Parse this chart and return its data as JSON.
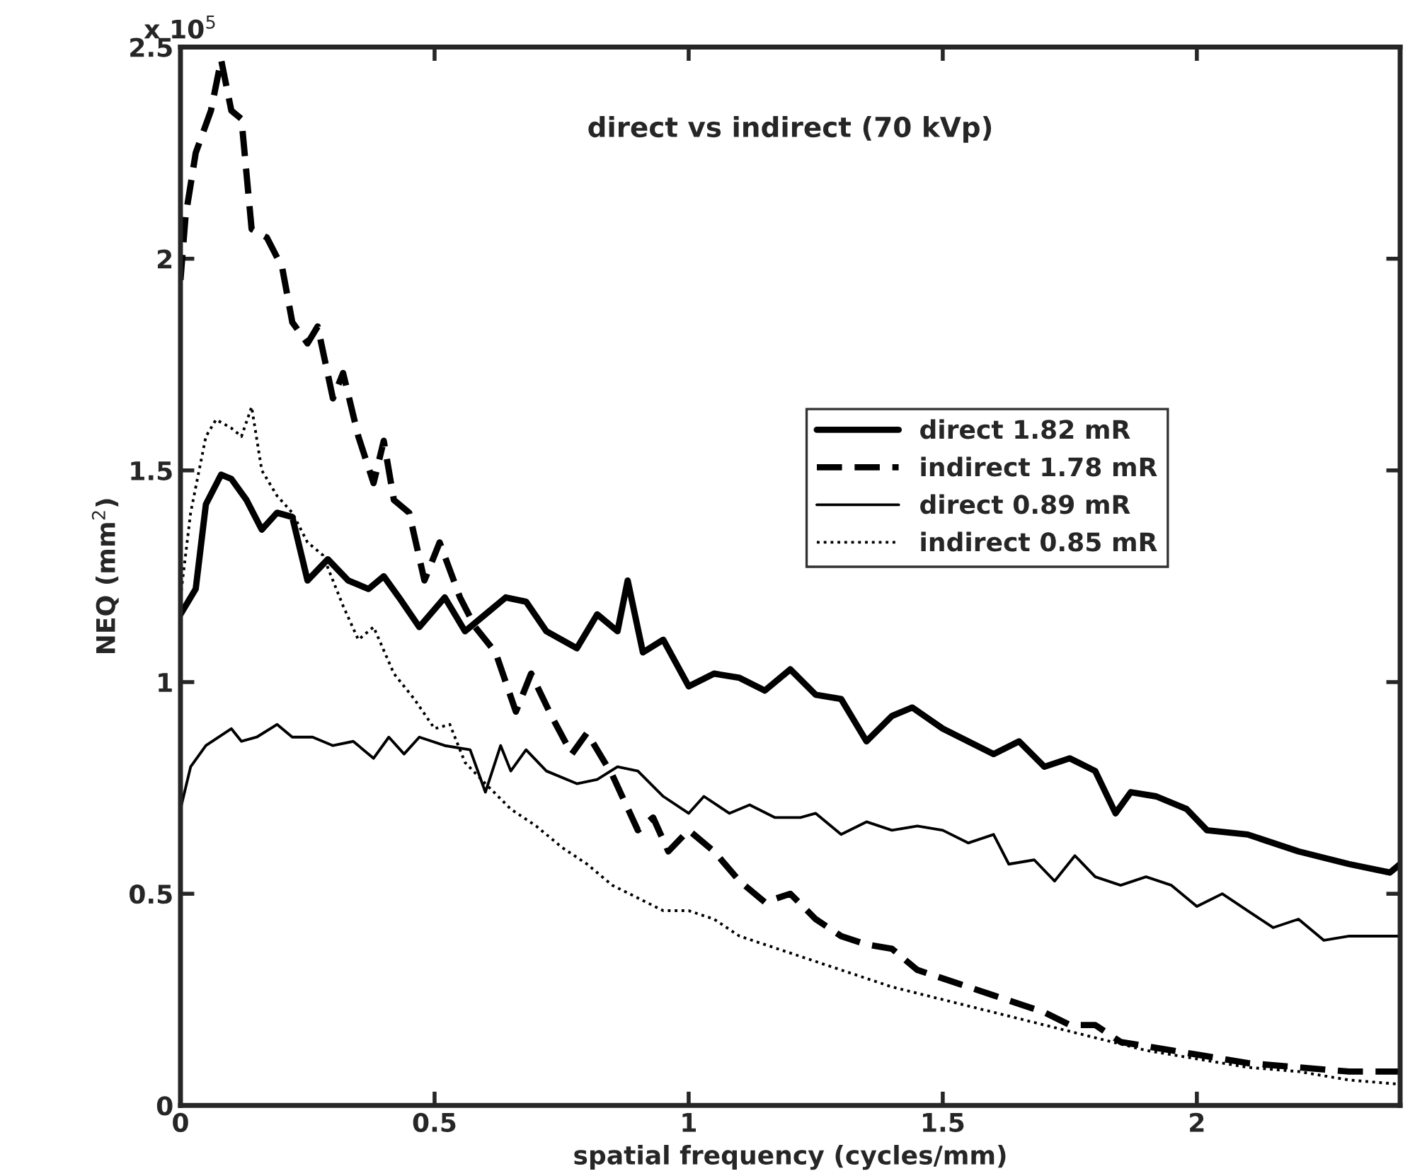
{
  "chart_data": {
    "type": "line",
    "title": "direct vs indirect (70 kVp)",
    "xlabel": "spatial frequency (cycles/mm)",
    "ylabel": "NEQ (mm$^{2}$)",
    "annotations": [
      "x 10$^{5}$"
    ],
    "xlim": [
      0,
      2.4
    ],
    "xticks": [
      0,
      0.5,
      1,
      1.5,
      2
    ],
    "ylim": [
      0,
      2.5
    ],
    "yticks": [
      0,
      0.5,
      1,
      1.5,
      2,
      2.5
    ],
    "grid": false,
    "legend": "right",
    "marker": "none",
    "series": [
      {
        "name": "direct 1.82 mR",
        "color": "#000000",
        "line_style": "solid",
        "x": [
          0,
          0.03,
          0.05,
          0.08,
          0.1,
          0.13,
          0.16,
          0.19,
          0.22,
          0.25,
          0.29,
          0.33,
          0.37,
          0.4,
          0.43,
          0.47,
          0.52,
          0.56,
          0.6,
          0.64,
          0.68,
          0.72,
          0.78,
          0.82,
          0.86,
          0.88,
          0.91,
          0.95,
          1.0,
          1.05,
          1.1,
          1.15,
          1.2,
          1.25,
          1.3,
          1.35,
          1.4,
          1.44,
          1.5,
          1.55,
          1.6,
          1.65,
          1.7,
          1.75,
          1.8,
          1.84,
          1.87,
          1.92,
          1.98,
          2.02,
          2.1,
          2.2,
          2.3,
          2.38,
          2.4
        ],
        "values": [
          1.16,
          1.22,
          1.42,
          1.49,
          1.48,
          1.43,
          1.36,
          1.4,
          1.39,
          1.24,
          1.29,
          1.24,
          1.22,
          1.25,
          1.2,
          1.13,
          1.2,
          1.12,
          1.16,
          1.2,
          1.19,
          1.12,
          1.08,
          1.16,
          1.12,
          1.24,
          1.07,
          1.1,
          0.99,
          1.02,
          1.01,
          0.98,
          1.03,
          0.97,
          0.96,
          0.86,
          0.92,
          0.94,
          0.89,
          0.86,
          0.83,
          0.86,
          0.8,
          0.82,
          0.79,
          0.69,
          0.74,
          0.73,
          0.7,
          0.65,
          0.64,
          0.6,
          0.57,
          0.55,
          0.57
        ]
      },
      {
        "name": "indirect 1.78 mR",
        "color": "#000000",
        "line_style": "dashed",
        "x": [
          0,
          0.01,
          0.03,
          0.06,
          0.08,
          0.1,
          0.12,
          0.14,
          0.17,
          0.2,
          0.22,
          0.25,
          0.27,
          0.3,
          0.32,
          0.35,
          0.38,
          0.4,
          0.42,
          0.45,
          0.48,
          0.51,
          0.55,
          0.58,
          0.62,
          0.66,
          0.69,
          0.73,
          0.77,
          0.8,
          0.85,
          0.9,
          0.93,
          0.96,
          1.0,
          1.05,
          1.1,
          1.15,
          1.2,
          1.25,
          1.3,
          1.35,
          1.4,
          1.45,
          1.5,
          1.55,
          1.6,
          1.65,
          1.7,
          1.75,
          1.8,
          1.85,
          1.9,
          2.0,
          2.1,
          2.2,
          2.3,
          2.4
        ],
        "values": [
          1.95,
          2.1,
          2.25,
          2.35,
          2.47,
          2.35,
          2.33,
          2.07,
          2.05,
          1.98,
          1.85,
          1.8,
          1.84,
          1.67,
          1.73,
          1.58,
          1.47,
          1.57,
          1.43,
          1.4,
          1.24,
          1.33,
          1.2,
          1.13,
          1.07,
          0.93,
          1.02,
          0.92,
          0.83,
          0.88,
          0.78,
          0.65,
          0.68,
          0.6,
          0.65,
          0.6,
          0.53,
          0.48,
          0.5,
          0.44,
          0.4,
          0.38,
          0.37,
          0.32,
          0.3,
          0.28,
          0.26,
          0.24,
          0.22,
          0.19,
          0.19,
          0.15,
          0.14,
          0.12,
          0.1,
          0.09,
          0.08,
          0.08
        ]
      },
      {
        "name": "direct 0.89 mR",
        "color": "#000000",
        "line_style": "solid",
        "x": [
          0,
          0.02,
          0.05,
          0.1,
          0.12,
          0.15,
          0.19,
          0.22,
          0.26,
          0.3,
          0.34,
          0.38,
          0.41,
          0.44,
          0.47,
          0.52,
          0.57,
          0.6,
          0.63,
          0.65,
          0.68,
          0.72,
          0.78,
          0.82,
          0.86,
          0.9,
          0.95,
          1.0,
          1.03,
          1.08,
          1.12,
          1.17,
          1.22,
          1.25,
          1.3,
          1.35,
          1.4,
          1.45,
          1.5,
          1.55,
          1.6,
          1.63,
          1.68,
          1.72,
          1.76,
          1.8,
          1.85,
          1.9,
          1.95,
          2.0,
          2.05,
          2.1,
          2.15,
          2.2,
          2.25,
          2.3,
          2.4
        ],
        "values": [
          0.7,
          0.8,
          0.85,
          0.89,
          0.86,
          0.87,
          0.9,
          0.87,
          0.87,
          0.85,
          0.86,
          0.82,
          0.87,
          0.83,
          0.87,
          0.85,
          0.84,
          0.74,
          0.85,
          0.79,
          0.84,
          0.79,
          0.76,
          0.77,
          0.8,
          0.79,
          0.73,
          0.69,
          0.73,
          0.69,
          0.71,
          0.68,
          0.68,
          0.69,
          0.64,
          0.67,
          0.65,
          0.66,
          0.65,
          0.62,
          0.64,
          0.57,
          0.58,
          0.53,
          0.59,
          0.54,
          0.52,
          0.54,
          0.52,
          0.47,
          0.5,
          0.46,
          0.42,
          0.44,
          0.39,
          0.4,
          0.4
        ]
      },
      {
        "name": "indirect 0.85 mR",
        "color": "#000000",
        "line_style": "dotted",
        "x": [
          0,
          0.02,
          0.05,
          0.07,
          0.1,
          0.12,
          0.14,
          0.16,
          0.19,
          0.22,
          0.25,
          0.28,
          0.32,
          0.35,
          0.38,
          0.42,
          0.46,
          0.5,
          0.53,
          0.56,
          0.6,
          0.65,
          0.7,
          0.75,
          0.8,
          0.85,
          0.9,
          0.95,
          1.0,
          1.05,
          1.1,
          1.15,
          1.2,
          1.3,
          1.4,
          1.5,
          1.6,
          1.7,
          1.8,
          1.9,
          2.0,
          2.1,
          2.2,
          2.3,
          2.4
        ],
        "values": [
          1.2,
          1.4,
          1.58,
          1.62,
          1.6,
          1.58,
          1.65,
          1.5,
          1.44,
          1.4,
          1.33,
          1.3,
          1.18,
          1.1,
          1.13,
          1.02,
          0.96,
          0.89,
          0.9,
          0.81,
          0.76,
          0.7,
          0.66,
          0.61,
          0.57,
          0.52,
          0.49,
          0.46,
          0.46,
          0.44,
          0.4,
          0.38,
          0.36,
          0.32,
          0.28,
          0.25,
          0.22,
          0.19,
          0.16,
          0.13,
          0.11,
          0.09,
          0.08,
          0.06,
          0.05
        ]
      }
    ]
  }
}
